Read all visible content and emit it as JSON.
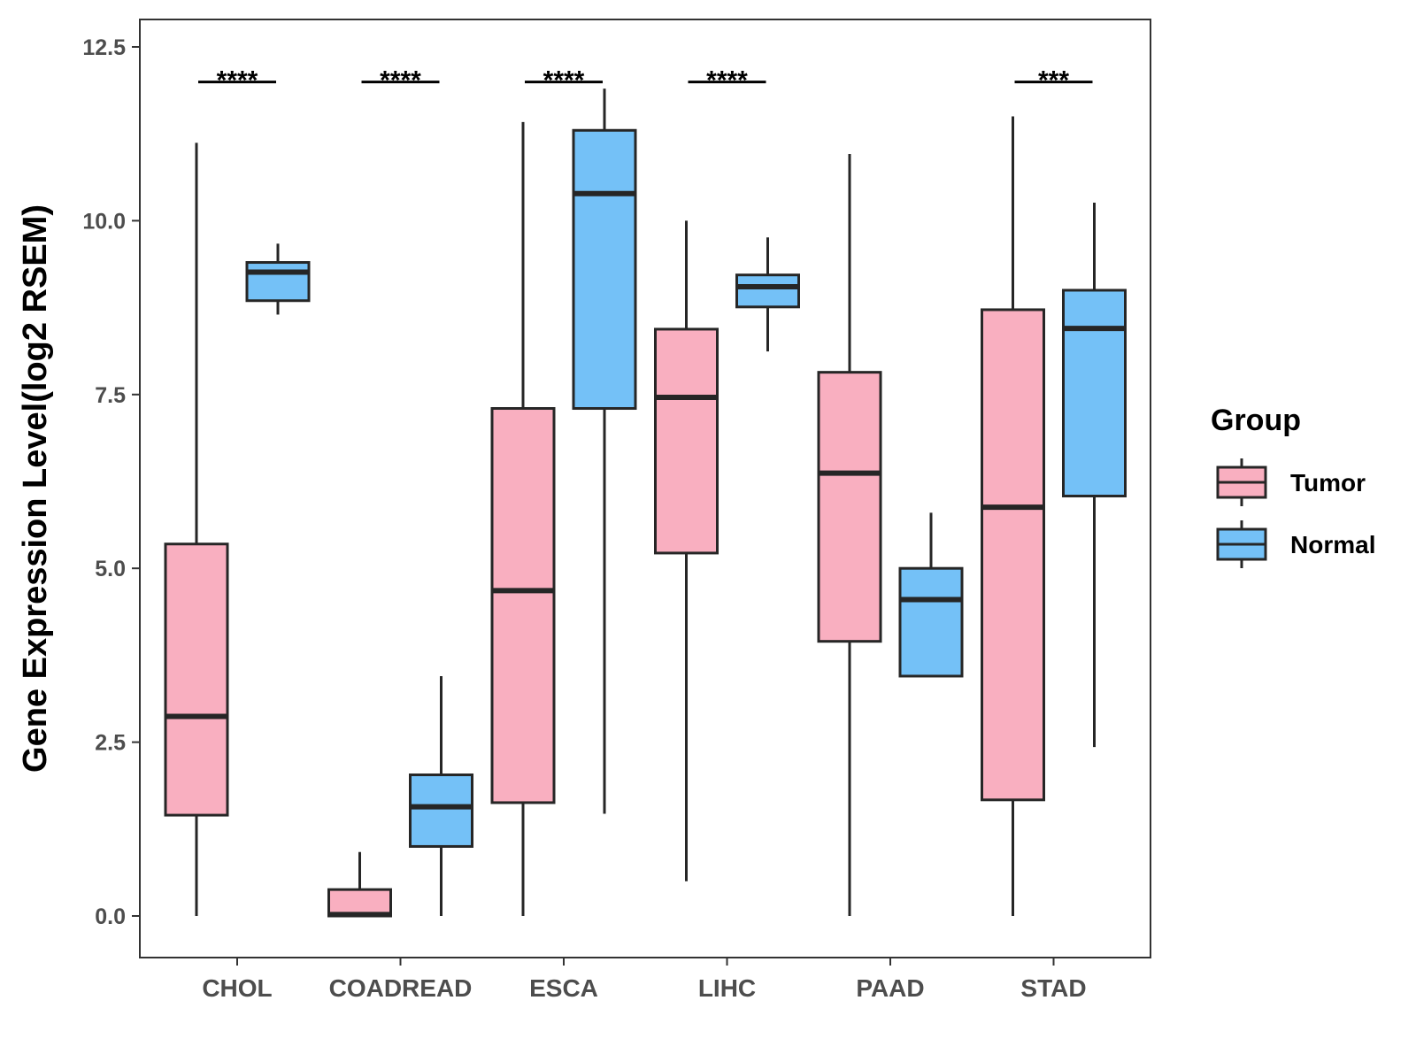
{
  "chart_data": {
    "type": "boxplot",
    "title": "",
    "xlabel": "",
    "ylabel": "Gene Expression Level(log2 RSEM)",
    "ylim": [
      -0.6,
      12.9
    ],
    "yticks": [
      0.0,
      2.5,
      5.0,
      7.5,
      10.0,
      12.5
    ],
    "ytick_labels": [
      "0.0",
      "2.5",
      "5.0",
      "7.5",
      "10.0",
      "12.5"
    ],
    "categories": [
      "CHOL",
      "COADREAD",
      "ESCA",
      "LIHC",
      "PAAD",
      "STAD"
    ],
    "legend": {
      "title": "Group",
      "position": "right",
      "entries": [
        {
          "name": "Tumor",
          "color": "#F9AFC0"
        },
        {
          "name": "Normal",
          "color": "#74C1F7"
        }
      ]
    },
    "series": [
      {
        "name": "Tumor",
        "color": "#F9AFC0",
        "boxes": [
          {
            "category": "CHOL",
            "min": 0.0,
            "q1": 1.45,
            "median": 2.87,
            "q3": 5.35,
            "max": 11.12
          },
          {
            "category": "COADREAD",
            "min": 0.0,
            "q1": 0.0,
            "median": 0.02,
            "q3": 0.38,
            "max": 0.92
          },
          {
            "category": "ESCA",
            "min": 0.0,
            "q1": 1.63,
            "median": 4.68,
            "q3": 7.3,
            "max": 11.42
          },
          {
            "category": "LIHC",
            "min": 0.5,
            "q1": 5.22,
            "median": 7.46,
            "q3": 8.44,
            "max": 10.0
          },
          {
            "category": "PAAD",
            "min": 0.0,
            "q1": 3.95,
            "median": 6.37,
            "q3": 7.82,
            "max": 10.96
          },
          {
            "category": "STAD",
            "min": 0.0,
            "q1": 1.67,
            "median": 5.88,
            "q3": 8.72,
            "max": 11.5
          }
        ]
      },
      {
        "name": "Normal",
        "color": "#74C1F7",
        "boxes": [
          {
            "category": "CHOL",
            "min": 8.65,
            "q1": 8.85,
            "median": 9.26,
            "q3": 9.4,
            "max": 9.67
          },
          {
            "category": "COADREAD",
            "min": 0.0,
            "q1": 1.0,
            "median": 1.57,
            "q3": 2.03,
            "max": 3.45
          },
          {
            "category": "ESCA",
            "min": 1.47,
            "q1": 7.3,
            "median": 10.39,
            "q3": 11.3,
            "max": 11.9
          },
          {
            "category": "LIHC",
            "min": 8.12,
            "q1": 8.76,
            "median": 9.05,
            "q3": 9.22,
            "max": 9.76
          },
          {
            "category": "PAAD",
            "min": 3.45,
            "q1": 3.45,
            "median": 4.55,
            "q3": 5.0,
            "max": 5.8
          },
          {
            "category": "STAD",
            "min": 2.43,
            "q1": 6.04,
            "median": 8.45,
            "q3": 9.0,
            "max": 10.26
          }
        ]
      }
    ],
    "significance": [
      {
        "category": "CHOL",
        "label": "****"
      },
      {
        "category": "COADREAD",
        "label": "****"
      },
      {
        "category": "ESCA",
        "label": "****"
      },
      {
        "category": "LIHC",
        "label": "****"
      },
      {
        "category": "STAD",
        "label": "***"
      }
    ],
    "significance_y": 12.25
  }
}
